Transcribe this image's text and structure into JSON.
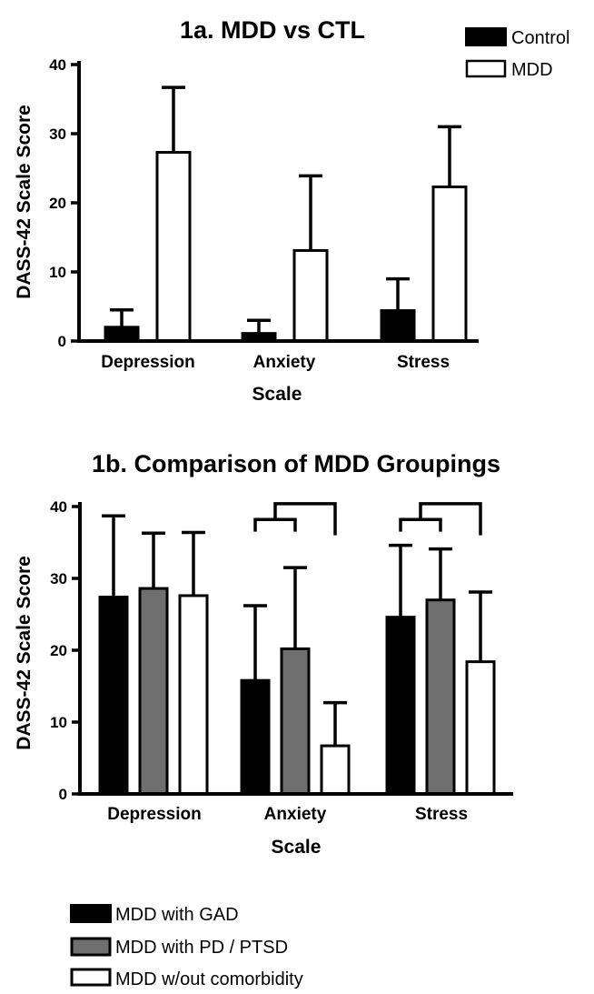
{
  "colors": {
    "black": "#000000",
    "gray": "#6f6f6f",
    "white": "#ffffff"
  },
  "chart_data": [
    {
      "type": "bar",
      "title": "1a. MDD vs CTL",
      "xlabel": "Scale",
      "ylabel": "DASS-42 Scale Score",
      "ylim": [
        0,
        40
      ],
      "yticks": [
        "0",
        "10",
        "20",
        "30",
        "40"
      ],
      "categories": [
        "Depression",
        "Anxiety",
        "Stress"
      ],
      "legend_position": "top-right",
      "series": [
        {
          "name": "Control",
          "color": "#000000",
          "values": [
            2.0,
            1.1,
            4.4
          ],
          "errors": [
            2.5,
            1.9,
            4.6
          ]
        },
        {
          "name": "MDD",
          "color": "#ffffff",
          "values": [
            27.3,
            13.1,
            22.3
          ],
          "errors": [
            9.4,
            10.8,
            8.7
          ]
        }
      ]
    },
    {
      "type": "bar",
      "title": "1b. Comparison of MDD Groupings",
      "xlabel": "Scale",
      "ylabel": "DASS-42 Scale Score",
      "ylim": [
        0,
        40
      ],
      "yticks": [
        "0",
        "10",
        "20",
        "30",
        "40"
      ],
      "categories": [
        "Depression",
        "Anxiety",
        "Stress"
      ],
      "legend_position": "bottom",
      "significance_brackets": [
        {
          "category": "Anxiety",
          "pairs": [
            [
              0,
              1
            ],
            [
              0,
              2
            ]
          ]
        },
        {
          "category": "Stress",
          "pairs": [
            [
              0,
              1
            ],
            [
              0,
              2
            ]
          ]
        }
      ],
      "series": [
        {
          "name": "MDD with GAD",
          "color": "#000000",
          "values": [
            27.4,
            15.8,
            24.6
          ],
          "errors": [
            11.3,
            10.4,
            10.0
          ]
        },
        {
          "name": "MDD with PD / PTSD",
          "color": "#6f6f6f",
          "values": [
            28.6,
            20.2,
            27.0
          ],
          "errors": [
            7.7,
            11.3,
            7.1
          ]
        },
        {
          "name": "MDD w/out comorbidity",
          "color": "#ffffff",
          "values": [
            27.6,
            6.7,
            18.4
          ],
          "errors": [
            8.8,
            6.0,
            9.7
          ]
        }
      ]
    }
  ]
}
